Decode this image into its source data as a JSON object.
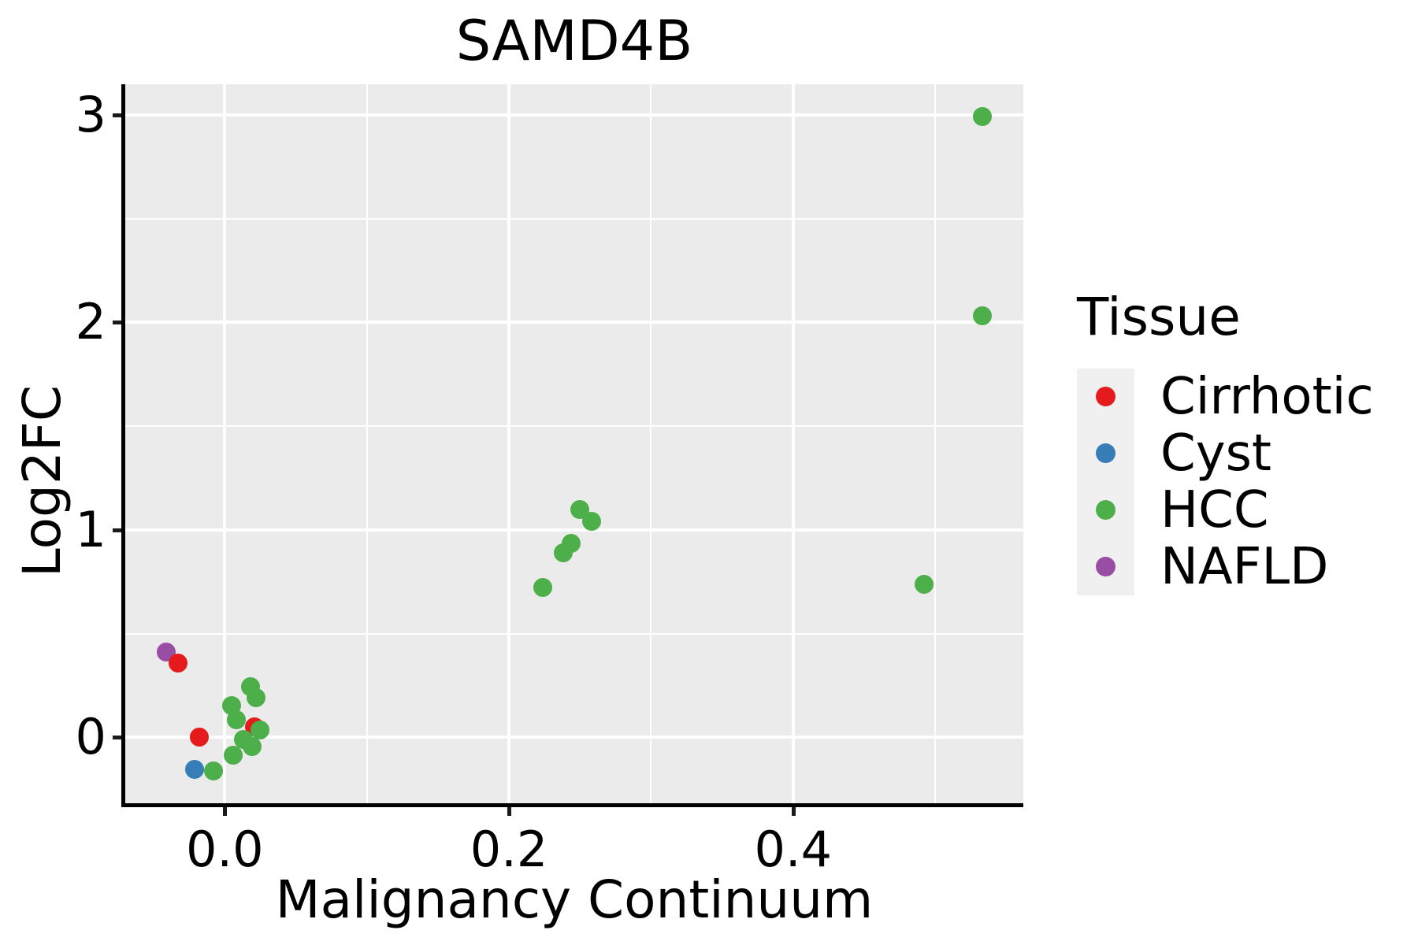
{
  "chart_data": {
    "type": "scatter",
    "title": "SAMD4B",
    "xlabel": "Malignancy Continuum",
    "ylabel": "Log2FC",
    "xlim": [
      -0.07,
      0.562
    ],
    "ylim": [
      -0.317,
      3.147
    ],
    "x_ticks": [
      0.0,
      0.2,
      0.4
    ],
    "x_tick_labels": [
      "0.0",
      "0.2",
      "0.4"
    ],
    "x_minor_ticks": [
      0.1,
      0.3,
      0.5
    ],
    "y_ticks": [
      0,
      1,
      2,
      3
    ],
    "y_tick_labels": [
      "0",
      "1",
      "2",
      "3"
    ],
    "y_minor_ticks": [
      0.5,
      1.5,
      2.5
    ],
    "grid": true,
    "plot_background_color": "#EBEBEB",
    "grid_color": "#FFFFFF",
    "axis_color": "#000000",
    "legend_position": "right",
    "legend_title": "Tissue",
    "series": [
      {
        "name": "NAFLD",
        "color": "#984EA3",
        "points": [
          [
            -0.041,
            0.41
          ]
        ]
      },
      {
        "name": "Cirrhotic",
        "color": "#E41A1C",
        "points": [
          [
            -0.033,
            0.36
          ],
          [
            -0.018,
            0.0
          ],
          [
            0.021,
            0.05
          ]
        ]
      },
      {
        "name": "Cyst",
        "color": "#377EB8",
        "points": [
          [
            -0.021,
            -0.155
          ]
        ]
      },
      {
        "name": "HCC",
        "color": "#4DAF4A",
        "points": [
          [
            -0.008,
            -0.16
          ],
          [
            0.006,
            -0.085
          ],
          [
            0.013,
            -0.01
          ],
          [
            0.019,
            -0.045
          ],
          [
            0.025,
            0.035
          ],
          [
            0.008,
            0.085
          ],
          [
            0.005,
            0.152
          ],
          [
            0.022,
            0.19
          ],
          [
            0.018,
            0.246
          ],
          [
            0.224,
            0.723
          ],
          [
            0.238,
            0.89
          ],
          [
            0.244,
            0.936
          ],
          [
            0.258,
            1.041
          ],
          [
            0.25,
            1.098
          ],
          [
            0.492,
            0.739
          ],
          [
            0.533,
            2.03
          ],
          [
            0.533,
            2.99
          ]
        ]
      }
    ],
    "legend": {
      "title": "Tissue",
      "items": [
        {
          "label": "Cirrhotic",
          "color": "#E41A1C"
        },
        {
          "label": "Cyst",
          "color": "#377EB8"
        },
        {
          "label": "HCC",
          "color": "#4DAF4A"
        },
        {
          "label": "NAFLD",
          "color": "#984EA3"
        }
      ]
    }
  }
}
